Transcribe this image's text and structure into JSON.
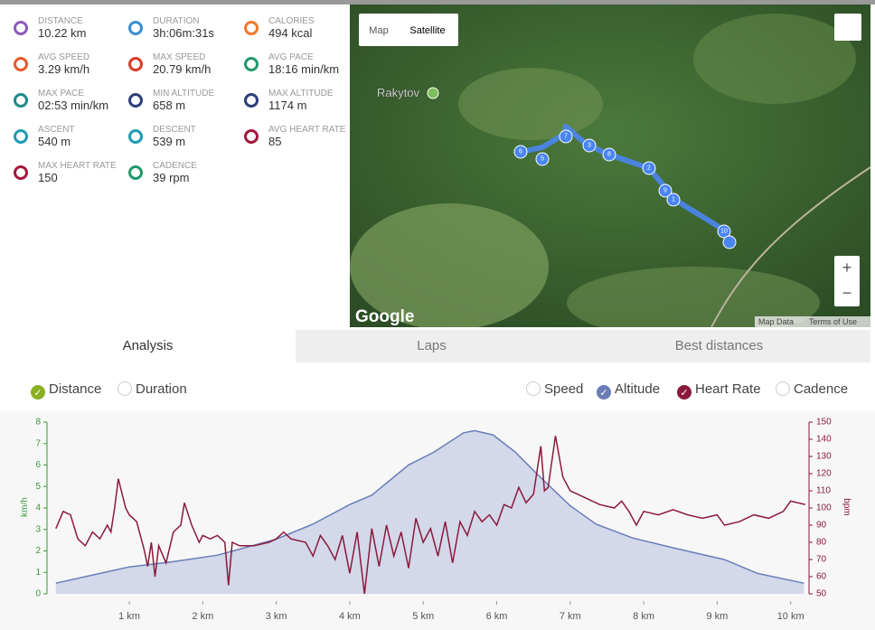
{
  "stats": {
    "items": [
      {
        "label": "DISTANCE",
        "value": "10.22 km"
      },
      {
        "label": "DURATION",
        "value": "3h:06m:31s"
      },
      {
        "label": "CALORIES",
        "value": "494 kcal"
      },
      {
        "label": "AVG SPEED",
        "value": "3.29 km/h"
      },
      {
        "label": "MAX SPEED",
        "value": "20.79 km/h"
      },
      {
        "label": "AVG PACE",
        "value": "18:16 min/km"
      },
      {
        "label": "MAX PACE",
        "value": "02:53 min/km"
      },
      {
        "label": "MIN ALTITUDE",
        "value": "658 m"
      },
      {
        "label": "MAX ALTITUDE",
        "value": "1174 m"
      },
      {
        "label": "ASCENT",
        "value": "540 m"
      },
      {
        "label": "DESCENT",
        "value": "539 m"
      },
      {
        "label": "AVG HEART RATE",
        "value": "85"
      },
      {
        "label": "MAX HEART RATE",
        "value": "150"
      },
      {
        "label": "CADENCE",
        "value": "39 rpm"
      }
    ]
  },
  "map": {
    "buttons": [
      "Map",
      "Satellite"
    ],
    "place": "Rakytov",
    "logo": "Google",
    "footer": [
      "Map Data",
      "Terms of Use"
    ],
    "zoom": [
      "+",
      "−"
    ],
    "markers": [
      "6",
      "5",
      "7",
      "3",
      "8",
      "2",
      "9",
      "1",
      "10"
    ]
  },
  "tabs": [
    "Analysis",
    "Laps",
    "Best distances"
  ],
  "toggles": {
    "x": [
      "Distance",
      "Duration"
    ],
    "metrics": [
      "Speed",
      "Altitude",
      "Heart Rate",
      "Cadence"
    ]
  },
  "chart_data": {
    "type": "line",
    "ylabel": "km/h",
    "y2label": "bpm",
    "xlim": [
      -0.12,
      10.25
    ],
    "xticks": [
      {
        "value": 1,
        "label": "1 km"
      },
      {
        "value": 2,
        "label": "2 km"
      },
      {
        "value": 3,
        "label": "3 km"
      },
      {
        "value": 4,
        "label": "4 km"
      },
      {
        "value": 5,
        "label": "5 km"
      },
      {
        "value": 6,
        "label": "6 km"
      },
      {
        "value": 7,
        "label": "7 km"
      },
      {
        "value": 8,
        "label": "8 km"
      },
      {
        "value": 9,
        "label": "9 km"
      },
      {
        "value": 10,
        "label": "10 km"
      }
    ],
    "ylim": [
      0,
      8
    ],
    "yticks": [
      0,
      1,
      2,
      3,
      4,
      5,
      6,
      7,
      8
    ],
    "y2lim": [
      50,
      150
    ],
    "y2ticks": [
      50,
      60,
      70,
      80,
      90,
      100,
      110,
      120,
      130,
      140,
      150
    ],
    "y3lim": [
      622,
      1203
    ],
    "series": [
      {
        "name": "Altitude",
        "color": "#6a7db8",
        "axis": "y3",
        "x": [
          0,
          1,
          1.6,
          2.2,
          3,
          3.5,
          4,
          4.3,
          4.8,
          5.15,
          5.55,
          5.7,
          5.95,
          6.25,
          6.6,
          7,
          7.35,
          7.85,
          8.45,
          9.1,
          9.55,
          10.18
        ],
        "values": [
          658,
          713,
          731,
          753,
          807,
          858,
          924,
          956,
          1058,
          1102,
          1167,
          1174,
          1160,
          1102,
          1015,
          920,
          858,
          811,
          775,
          738,
          691,
          658
        ]
      },
      {
        "name": "Heart Rate",
        "color": "#8b1a3a",
        "axis": "y2",
        "x": [
          0,
          0.1,
          0.2,
          0.3,
          0.4,
          0.5,
          0.6,
          0.7,
          0.75,
          0.8,
          0.85,
          0.95,
          1,
          1.1,
          1.2,
          1.25,
          1.3,
          1.35,
          1.4,
          1.5,
          1.6,
          1.7,
          1.75,
          1.85,
          1.95,
          2,
          2.1,
          2.2,
          2.3,
          2.35,
          2.4,
          2.5,
          2.7,
          2.9,
          3,
          3.1,
          3.2,
          3.4,
          3.5,
          3.6,
          3.7,
          3.8,
          3.9,
          4,
          4.1,
          4.2,
          4.3,
          4.4,
          4.5,
          4.6,
          4.7,
          4.8,
          4.9,
          5,
          5.1,
          5.2,
          5.3,
          5.4,
          5.5,
          5.6,
          5.7,
          5.8,
          5.9,
          6,
          6.1,
          6.2,
          6.3,
          6.4,
          6.5,
          6.6,
          6.65,
          6.7,
          6.8,
          6.9,
          7,
          7.2,
          7.4,
          7.6,
          7.7,
          7.8,
          7.9,
          8,
          8.2,
          8.4,
          8.6,
          8.8,
          9,
          9.1,
          9.3,
          9.5,
          9.7,
          9.9,
          10,
          10.2
        ],
        "values": [
          88,
          98,
          96,
          82,
          78,
          86,
          82,
          90,
          86,
          100,
          117,
          100,
          96,
          92,
          76,
          66,
          80,
          60,
          78,
          68,
          86,
          90,
          103,
          90,
          80,
          84,
          82,
          84,
          80,
          55,
          80,
          78,
          78,
          80,
          82,
          86,
          82,
          80,
          72,
          84,
          78,
          70,
          84,
          62,
          86,
          50,
          88,
          66,
          90,
          72,
          86,
          65,
          94,
          80,
          88,
          72,
          92,
          68,
          92,
          84,
          98,
          92,
          96,
          90,
          102,
          100,
          112,
          103,
          108,
          136,
          110,
          112,
          142,
          118,
          110,
          106,
          102,
          100,
          104,
          98,
          90,
          98,
          96,
          99,
          96,
          94,
          96,
          90,
          92,
          96,
          94,
          98,
          104,
          102
        ]
      }
    ]
  }
}
